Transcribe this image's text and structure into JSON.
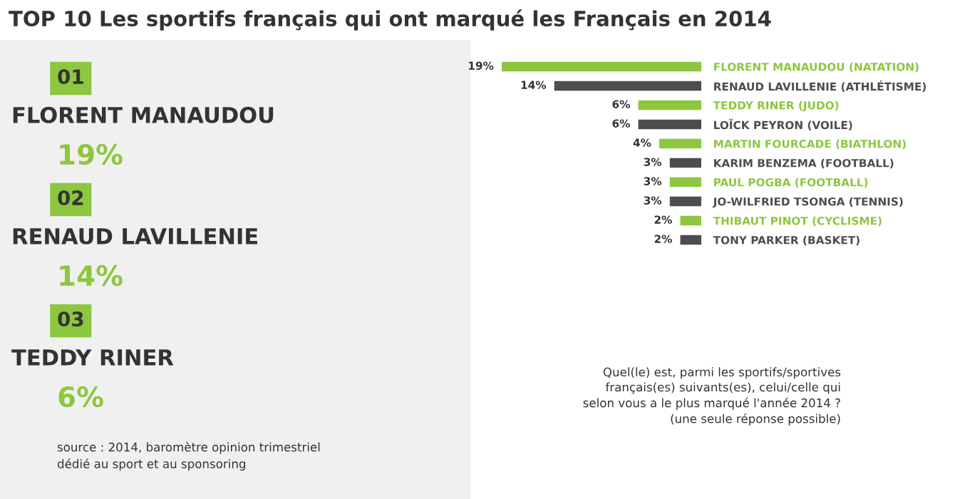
{
  "chart_data": {
    "type": "bar",
    "orientation": "horizontal",
    "title": "TOP 10 Les sportifs français qui ont marqué les Français en 2014",
    "categories": [
      "FLORENT MANAUDOU (NATATION)",
      "RENAUD LAVILLENIE (ATHLÉTISME)",
      "TEDDY RINER (JUDO)",
      "LOÏCK PEYRON (VOILE)",
      "MARTIN FOURCADE (BIATHLON)",
      "KARIM BENZEMA (FOOTBALL)",
      "PAUL POGBA (FOOTBALL)",
      "JO-WILFRIED TSONGA (TENNIS)",
      "THIBAUT PINOT (CYCLISME)",
      "TONY PARKER (BASKET)"
    ],
    "values": [
      19,
      14,
      6,
      6,
      4,
      3,
      3,
      3,
      2,
      2
    ],
    "value_labels": [
      "19%",
      "14%",
      "6%",
      "6%",
      "4%",
      "3%",
      "3%",
      "3%",
      "2%",
      "2%"
    ],
    "colors": [
      "#8dc63f",
      "#4d4d4f",
      "#8dc63f",
      "#4d4d4f",
      "#8dc63f",
      "#4d4d4f",
      "#8dc63f",
      "#4d4d4f",
      "#8dc63f",
      "#4d4d4f"
    ],
    "annotations": [
      "01",
      "FLORENT MANAUDOU",
      "19%",
      "02",
      "RENAUD LAVILLENIE",
      "14%",
      "03",
      "TEDDY RINER",
      "6%",
      "Quel(le) est, parmi les sportifs/sportives\nfrançais(es) suivants(es), celui/celle qui\nselon vous a le plus marqué l'année 2014 ?\n(une seule réponse possible)",
      "source : 2014, baromètre opinion trimestriel\ndédié au sport et au sponsoring"
    ]
  }
}
